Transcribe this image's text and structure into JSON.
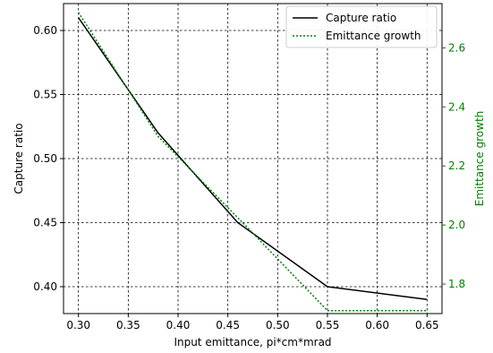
{
  "chart_data": {
    "type": "line",
    "xlabel": "Input emittance, pi*cm*mrad",
    "ylabel_left": "Capture ratio",
    "ylabel_right": "Emittance growth",
    "xlim": [
      0.285,
      0.665
    ],
    "ylim_left": [
      0.379,
      0.621
    ],
    "ylim_right": [
      1.7,
      2.75
    ],
    "x_ticks": [
      "0.30",
      "0.35",
      "0.40",
      "0.45",
      "0.50",
      "0.55",
      "0.60",
      "0.65"
    ],
    "y_left_ticks": [
      "0.40",
      "0.45",
      "0.50",
      "0.55",
      "0.60"
    ],
    "y_right_ticks": [
      "1.8",
      "2.0",
      "2.2",
      "2.4",
      "2.6"
    ],
    "grid": true,
    "legend_position": "top-right",
    "colors": {
      "capture": "#000000",
      "emittance": "#008000",
      "right_axis": "#008000"
    },
    "series": [
      {
        "name": "Capture ratio",
        "axis": "left",
        "style": "solid",
        "x": [
          0.3,
          0.38,
          0.46,
          0.55,
          0.65
        ],
        "values": [
          0.61,
          0.52,
          0.45,
          0.4,
          0.39
        ]
      },
      {
        "name": "Emittance growth",
        "axis": "right",
        "style": "dotted",
        "x": [
          0.3,
          0.38,
          0.47,
          0.55,
          0.65
        ],
        "values": [
          2.72,
          2.3,
          1.99,
          1.71,
          1.71
        ]
      }
    ]
  }
}
